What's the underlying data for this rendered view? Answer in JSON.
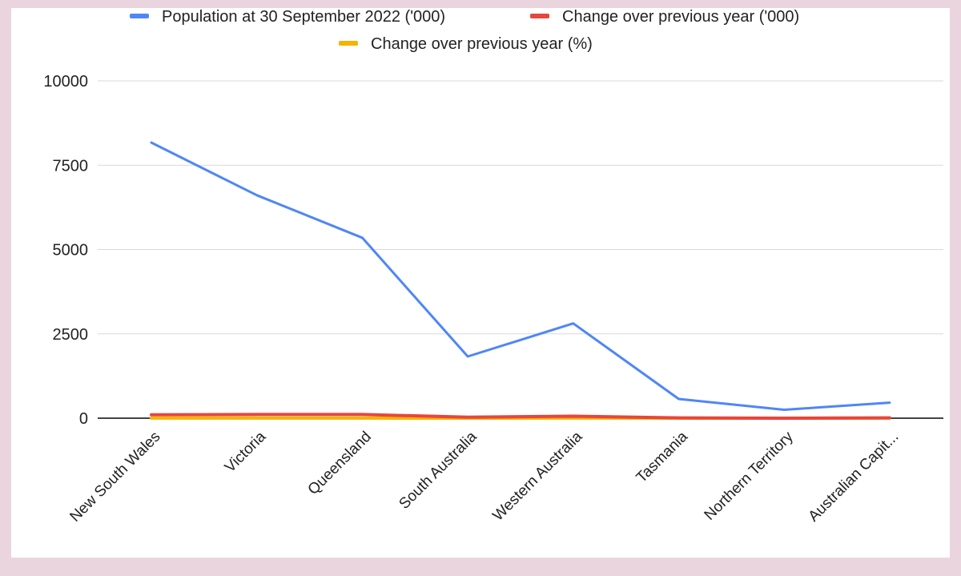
{
  "chart_data": {
    "type": "line",
    "title": "",
    "xlabel": "",
    "ylabel": "",
    "categories": [
      "New South Wales",
      "Victoria",
      "Queensland",
      "South Australia",
      "Western Australia",
      "Tasmania",
      "Northern Territory",
      "Australian Capit..."
    ],
    "series": [
      {
        "name": "Population at 30 September 2022 ('000)",
        "color": "#4f86f7",
        "values": [
          8170,
          6610,
          5350,
          1830,
          2810,
          570,
          250,
          460
        ]
      },
      {
        "name": "Change over previous year ('000)",
        "color": "#e8453c",
        "values": [
          100,
          110,
          110,
          30,
          60,
          10,
          0,
          10
        ]
      },
      {
        "name": "Change over previous year (%)",
        "color": "#f4b400",
        "values": [
          1.2,
          1.6,
          2.2,
          1.0,
          2.2,
          0.4,
          0.9,
          1.5
        ]
      }
    ],
    "ylim": [
      0,
      10000
    ],
    "yticks": [
      "0",
      "2500",
      "5000",
      "7500",
      "10000"
    ],
    "ytick_values": [
      0,
      2500,
      5000,
      7500,
      10000
    ],
    "grid": true,
    "legend_position": "top"
  }
}
